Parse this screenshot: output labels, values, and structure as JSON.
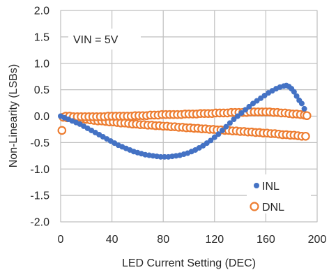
{
  "chart_data": {
    "type": "scatter",
    "title": "",
    "xlabel": "LED Current Setting (DEC)",
    "ylabel": "Non-Linearity (LSBs)",
    "xlim": [
      0,
      200
    ],
    "ylim": [
      -2.0,
      2.0
    ],
    "xticks": [
      "0",
      "40",
      "80",
      "120",
      "160",
      "200"
    ],
    "yticks": [
      "2.0",
      "1.5",
      "1.0",
      "0.5",
      "0.0",
      "-0.5",
      "-1.0",
      "-1.5",
      "-2.0"
    ],
    "grid": true,
    "legend_position": "bottom-right",
    "annotation": "VIN = 5V",
    "colors": {
      "INL": "#4472C4",
      "DNL": "#ED7D31",
      "grid": "#bfbfbf"
    },
    "series": [
      {
        "name": "INL",
        "marker": "filled-circle",
        "points": [
          [
            0,
            0.0
          ],
          [
            3,
            -0.03
          ],
          [
            6,
            -0.06
          ],
          [
            9,
            -0.09
          ],
          [
            12,
            -0.12
          ],
          [
            15,
            -0.15
          ],
          [
            18,
            -0.19
          ],
          [
            21,
            -0.23
          ],
          [
            24,
            -0.27
          ],
          [
            27,
            -0.31
          ],
          [
            30,
            -0.35
          ],
          [
            33,
            -0.39
          ],
          [
            36,
            -0.43
          ],
          [
            39,
            -0.47
          ],
          [
            42,
            -0.51
          ],
          [
            45,
            -0.55
          ],
          [
            48,
            -0.58
          ],
          [
            51,
            -0.61
          ],
          [
            54,
            -0.64
          ],
          [
            57,
            -0.67
          ],
          [
            60,
            -0.69
          ],
          [
            63,
            -0.71
          ],
          [
            66,
            -0.73
          ],
          [
            69,
            -0.74
          ],
          [
            72,
            -0.75
          ],
          [
            75,
            -0.76
          ],
          [
            78,
            -0.77
          ],
          [
            81,
            -0.77
          ],
          [
            84,
            -0.77
          ],
          [
            87,
            -0.76
          ],
          [
            90,
            -0.75
          ],
          [
            93,
            -0.74
          ],
          [
            96,
            -0.72
          ],
          [
            99,
            -0.7
          ],
          [
            102,
            -0.67
          ],
          [
            105,
            -0.64
          ],
          [
            108,
            -0.6
          ],
          [
            111,
            -0.56
          ],
          [
            114,
            -0.51
          ],
          [
            117,
            -0.46
          ],
          [
            120,
            -0.4
          ],
          [
            123,
            -0.34
          ],
          [
            126,
            -0.27
          ],
          [
            129,
            -0.2
          ],
          [
            132,
            -0.13
          ],
          [
            135,
            -0.06
          ],
          [
            138,
            0.0
          ],
          [
            141,
            0.06
          ],
          [
            144,
            0.12
          ],
          [
            147,
            0.18
          ],
          [
            150,
            0.24
          ],
          [
            153,
            0.29
          ],
          [
            156,
            0.34
          ],
          [
            159,
            0.39
          ],
          [
            162,
            0.44
          ],
          [
            165,
            0.48
          ],
          [
            168,
            0.52
          ],
          [
            171,
            0.55
          ],
          [
            174,
            0.57
          ],
          [
            176,
            0.58
          ],
          [
            178,
            0.56
          ],
          [
            180,
            0.52
          ],
          [
            182,
            0.46
          ],
          [
            184,
            0.38
          ],
          [
            186,
            0.3
          ],
          [
            188,
            0.24
          ],
          [
            190,
            0.14
          ]
        ]
      },
      {
        "name": "DNL",
        "marker": "hollow-circle",
        "points": [
          [
            1,
            -0.27
          ],
          [
            2,
            -0.02
          ],
          [
            5,
            -0.03
          ],
          [
            8,
            -0.03
          ],
          [
            11,
            -0.04
          ],
          [
            14,
            -0.04
          ],
          [
            17,
            -0.05
          ],
          [
            20,
            -0.06
          ],
          [
            23,
            -0.07
          ],
          [
            26,
            -0.08
          ],
          [
            29,
            -0.09
          ],
          [
            32,
            -0.09
          ],
          [
            35,
            -0.1
          ],
          [
            38,
            -0.11
          ],
          [
            41,
            -0.11
          ],
          [
            44,
            -0.12
          ],
          [
            47,
            -0.13
          ],
          [
            50,
            -0.13
          ],
          [
            53,
            -0.14
          ],
          [
            56,
            -0.15
          ],
          [
            59,
            -0.15
          ],
          [
            62,
            -0.16
          ],
          [
            65,
            -0.16
          ],
          [
            68,
            -0.17
          ],
          [
            71,
            -0.17
          ],
          [
            74,
            -0.18
          ],
          [
            77,
            -0.18
          ],
          [
            80,
            -0.19
          ],
          [
            83,
            -0.19
          ],
          [
            86,
            -0.2
          ],
          [
            89,
            -0.2
          ],
          [
            92,
            -0.21
          ],
          [
            95,
            -0.21
          ],
          [
            98,
            -0.22
          ],
          [
            101,
            -0.22
          ],
          [
            104,
            -0.23
          ],
          [
            107,
            -0.23
          ],
          [
            110,
            -0.24
          ],
          [
            113,
            -0.24
          ],
          [
            116,
            -0.25
          ],
          [
            119,
            -0.25
          ],
          [
            122,
            -0.26
          ],
          [
            125,
            -0.26
          ],
          [
            128,
            -0.27
          ],
          [
            131,
            -0.27
          ],
          [
            134,
            -0.28
          ],
          [
            137,
            -0.28
          ],
          [
            140,
            -0.29
          ],
          [
            143,
            -0.29
          ],
          [
            146,
            -0.3
          ],
          [
            149,
            -0.3
          ],
          [
            152,
            -0.31
          ],
          [
            155,
            -0.31
          ],
          [
            158,
            -0.32
          ],
          [
            161,
            -0.32
          ],
          [
            164,
            -0.33
          ],
          [
            167,
            -0.33
          ],
          [
            170,
            -0.34
          ],
          [
            173,
            -0.35
          ],
          [
            176,
            -0.35
          ],
          [
            179,
            -0.36
          ],
          [
            182,
            -0.36
          ],
          [
            185,
            -0.37
          ],
          [
            188,
            -0.38
          ],
          [
            191,
            -0.38
          ],
          [
            4,
            0.0
          ],
          [
            7,
            0.0
          ],
          [
            10,
            -0.01
          ],
          [
            13,
            -0.01
          ],
          [
            16,
            -0.01
          ],
          [
            19,
            -0.01
          ],
          [
            22,
            -0.01
          ],
          [
            25,
            -0.01
          ],
          [
            28,
            -0.01
          ],
          [
            31,
            -0.01
          ],
          [
            34,
            -0.01
          ],
          [
            37,
            0.0
          ],
          [
            40,
            0.0
          ],
          [
            43,
            0.0
          ],
          [
            46,
            0.0
          ],
          [
            49,
            0.0
          ],
          [
            52,
            0.0
          ],
          [
            55,
            0.0
          ],
          [
            58,
            0.01
          ],
          [
            61,
            0.01
          ],
          [
            64,
            0.01
          ],
          [
            67,
            0.01
          ],
          [
            70,
            0.02
          ],
          [
            73,
            0.02
          ],
          [
            76,
            0.02
          ],
          [
            79,
            0.03
          ],
          [
            82,
            0.03
          ],
          [
            85,
            0.03
          ],
          [
            88,
            0.03
          ],
          [
            91,
            0.03
          ],
          [
            94,
            0.03
          ],
          [
            97,
            0.04
          ],
          [
            100,
            0.04
          ],
          [
            103,
            0.04
          ],
          [
            106,
            0.04
          ],
          [
            109,
            0.05
          ],
          [
            112,
            0.05
          ],
          [
            115,
            0.05
          ],
          [
            118,
            0.05
          ],
          [
            121,
            0.06
          ],
          [
            124,
            0.06
          ],
          [
            127,
            0.06
          ],
          [
            130,
            0.06
          ],
          [
            133,
            0.07
          ],
          [
            136,
            0.07
          ],
          [
            139,
            0.07
          ],
          [
            142,
            0.07
          ],
          [
            145,
            0.07
          ],
          [
            148,
            0.08
          ],
          [
            151,
            0.08
          ],
          [
            154,
            0.08
          ],
          [
            157,
            0.08
          ],
          [
            160,
            0.08
          ],
          [
            163,
            0.08
          ],
          [
            166,
            0.07
          ],
          [
            169,
            0.07
          ],
          [
            172,
            0.06
          ],
          [
            175,
            0.06
          ],
          [
            178,
            0.05
          ],
          [
            181,
            0.04
          ],
          [
            184,
            0.04
          ],
          [
            187,
            0.03
          ],
          [
            190,
            0.02
          ],
          [
            192,
            0.01
          ]
        ]
      }
    ]
  }
}
